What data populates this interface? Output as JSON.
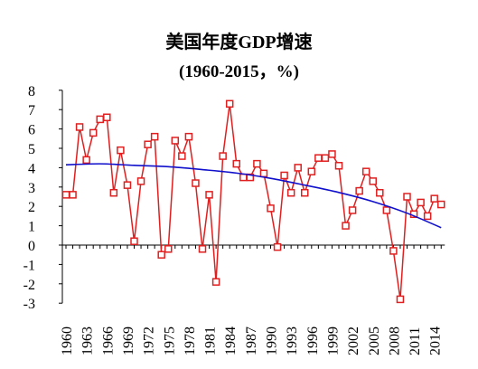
{
  "chart_data": {
    "type": "line",
    "title": "美国年度GDP增速",
    "subtitle": "(1960-2015，%)",
    "ylim": [
      -3,
      8
    ],
    "yticks": [
      -3,
      -2,
      -1,
      0,
      1,
      2,
      3,
      4,
      5,
      6,
      7,
      8
    ],
    "xtick_labels": [
      "1960",
      "1963",
      "1966",
      "1969",
      "1972",
      "1975",
      "1978",
      "1981",
      "1984",
      "1987",
      "1990",
      "1993",
      "1996",
      "1999",
      "2002",
      "2005",
      "2008",
      "2011",
      "2014"
    ],
    "grid": false,
    "legend": "none",
    "series": [
      {
        "style": "line-square-markers",
        "color": "#e02020",
        "x": [
          1960,
          1961,
          1962,
          1963,
          1964,
          1965,
          1966,
          1967,
          1968,
          1969,
          1970,
          1971,
          1972,
          1973,
          1974,
          1975,
          1976,
          1977,
          1978,
          1979,
          1980,
          1981,
          1982,
          1983,
          1984,
          1985,
          1986,
          1987,
          1988,
          1989,
          1990,
          1991,
          1992,
          1993,
          1994,
          1995,
          1996,
          1997,
          1998,
          1999,
          2000,
          2001,
          2002,
          2003,
          2004,
          2005,
          2006,
          2007,
          2008,
          2009,
          2010,
          2011,
          2012,
          2013,
          2014,
          2015
        ],
        "values": [
          2.6,
          2.6,
          6.1,
          4.4,
          5.8,
          6.5,
          6.6,
          2.7,
          4.9,
          3.1,
          0.2,
          3.3,
          5.2,
          5.6,
          -0.5,
          -0.2,
          5.4,
          4.6,
          5.6,
          3.2,
          -0.2,
          2.6,
          -1.9,
          4.6,
          7.3,
          4.2,
          3.5,
          3.5,
          4.2,
          3.7,
          1.9,
          -0.1,
          3.6,
          2.7,
          4.0,
          2.7,
          3.8,
          4.5,
          4.5,
          4.7,
          4.1,
          1.0,
          1.8,
          2.8,
          3.8,
          3.3,
          2.7,
          1.8,
          -0.3,
          -2.8,
          2.5,
          1.6,
          2.2,
          1.5,
          2.4,
          2.1
        ]
      },
      {
        "style": "smooth-trend-line",
        "color": "#1010cc",
        "x": [
          1960,
          1965,
          1970,
          1975,
          1980,
          1985,
          1990,
          1995,
          2000,
          2005,
          2010,
          2015
        ],
        "values": [
          4.15,
          4.2,
          4.12,
          4.05,
          3.9,
          3.72,
          3.45,
          3.1,
          2.72,
          2.25,
          1.65,
          0.9
        ]
      }
    ]
  }
}
